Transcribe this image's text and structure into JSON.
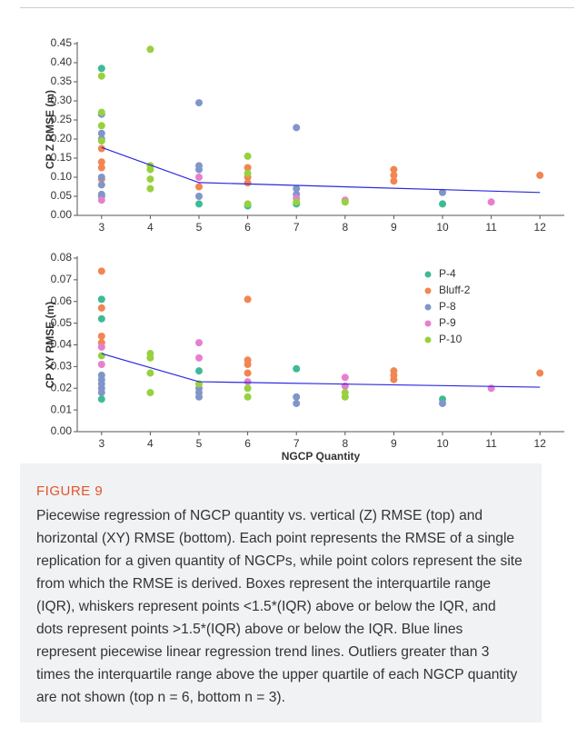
{
  "chart_data": [
    {
      "type": "scatter",
      "y_label": "CP Z RMSE (m)",
      "grid": false,
      "xlim": [
        2.5,
        12.5
      ],
      "xticks": [
        3,
        4,
        5,
        6,
        7,
        8,
        9,
        10,
        11,
        12
      ],
      "ylim": [
        0,
        0.45
      ],
      "yticks": [
        {
          "value": 0,
          "label": "0.00"
        },
        {
          "value": 0.05,
          "label": "0.05"
        },
        {
          "value": 0.1,
          "label": "0.10"
        },
        {
          "value": 0.15,
          "label": "0.15"
        },
        {
          "value": 0.2,
          "label": "0.20"
        },
        {
          "value": 0.25,
          "label": "0.25"
        },
        {
          "value": 0.3,
          "label": "0.30"
        },
        {
          "value": 0.35,
          "label": "0.35"
        },
        {
          "value": 0.4,
          "label": "0.40"
        },
        {
          "value": 0.45,
          "label": "0.45"
        }
      ],
      "series": [
        {
          "color": "#3dbb96",
          "x": [
            3,
            3,
            5,
            6,
            7,
            10
          ],
          "values": [
            0.385,
            0.05,
            0.03,
            0.025,
            0.03,
            0.03
          ]
        },
        {
          "color": "#f28552",
          "x": [
            3,
            3,
            3,
            3,
            5,
            6,
            6,
            6,
            9,
            9,
            9,
            12
          ],
          "values": [
            0.175,
            0.14,
            0.125,
            0.095,
            0.075,
            0.125,
            0.1,
            0.085,
            0.12,
            0.105,
            0.09,
            0.105
          ]
        },
        {
          "color": "#8096ca",
          "x": [
            3,
            3,
            3,
            3,
            3,
            3,
            5,
            5,
            5,
            5,
            7,
            7,
            7,
            10
          ],
          "values": [
            0.265,
            0.215,
            0.2,
            0.1,
            0.08,
            0.055,
            0.295,
            0.13,
            0.12,
            0.05,
            0.23,
            0.07,
            0.055,
            0.06
          ]
        },
        {
          "color": "#e87fce",
          "x": [
            3,
            5,
            7,
            8,
            11
          ],
          "values": [
            0.04,
            0.1,
            0.045,
            0.04,
            0.035
          ]
        },
        {
          "color": "#97d13f",
          "x": [
            3,
            3,
            3,
            3,
            4,
            4,
            4,
            4,
            4,
            6,
            6,
            6,
            7,
            8
          ],
          "values": [
            0.365,
            0.27,
            0.235,
            0.195,
            0.435,
            0.13,
            0.12,
            0.095,
            0.07,
            0.155,
            0.11,
            0.03,
            0.035,
            0.035
          ]
        }
      ],
      "trend": {
        "color": "#2929e0",
        "x": [
          3,
          5,
          12
        ],
        "values": [
          0.178,
          0.086,
          0.06
        ]
      }
    },
    {
      "type": "scatter",
      "y_label": "CP XY RMSE (m)",
      "x_label": "NGCP Quantity",
      "grid": false,
      "legend": "upper right",
      "xlim": [
        2.5,
        12.5
      ],
      "xticks": [
        3,
        4,
        5,
        6,
        7,
        8,
        9,
        10,
        11,
        12
      ],
      "ylim": [
        0,
        0.08
      ],
      "yticks": [
        {
          "value": 0,
          "label": "0.00"
        },
        {
          "value": 0.01,
          "label": "0.01"
        },
        {
          "value": 0.02,
          "label": "0.02"
        },
        {
          "value": 0.03,
          "label": "0.03"
        },
        {
          "value": 0.04,
          "label": "0.04"
        },
        {
          "value": 0.05,
          "label": "0.05"
        },
        {
          "value": 0.06,
          "label": "0.06"
        },
        {
          "value": 0.07,
          "label": "0.07"
        },
        {
          "value": 0.08,
          "label": "0.08"
        }
      ],
      "series": [
        {
          "name": "P-4",
          "color": "#3dbb96",
          "x": [
            3,
            3,
            3,
            5,
            7,
            10
          ],
          "values": [
            0.061,
            0.052,
            0.015,
            0.028,
            0.029,
            0.015
          ]
        },
        {
          "name": "Bluff-2",
          "color": "#f28552",
          "x": [
            3,
            3,
            3,
            3,
            6,
            6,
            6,
            6,
            9,
            9,
            9,
            12
          ],
          "values": [
            0.074,
            0.057,
            0.044,
            0.041,
            0.061,
            0.033,
            0.031,
            0.027,
            0.028,
            0.026,
            0.024,
            0.027
          ]
        },
        {
          "name": "P-8",
          "color": "#8096ca",
          "x": [
            3,
            3,
            3,
            3,
            3,
            5,
            5,
            5,
            7,
            7,
            10
          ],
          "values": [
            0.026,
            0.024,
            0.022,
            0.02,
            0.018,
            0.02,
            0.018,
            0.016,
            0.016,
            0.013,
            0.013
          ]
        },
        {
          "name": "P-9",
          "color": "#e87fce",
          "x": [
            3,
            3,
            5,
            5,
            6,
            8,
            8,
            11
          ],
          "values": [
            0.039,
            0.031,
            0.041,
            0.034,
            0.023,
            0.025,
            0.021,
            0.02
          ]
        },
        {
          "name": "P-10",
          "color": "#97d13f",
          "x": [
            3,
            4,
            4,
            4,
            4,
            5,
            6,
            6,
            8,
            8
          ],
          "values": [
            0.035,
            0.036,
            0.034,
            0.027,
            0.018,
            0.022,
            0.02,
            0.016,
            0.018,
            0.016
          ]
        }
      ],
      "trend": {
        "color": "#2929e0",
        "x": [
          3,
          5,
          12
        ],
        "values": [
          0.036,
          0.023,
          0.0205
        ]
      }
    }
  ],
  "figure": {
    "label": "FIGURE 9",
    "caption": "Piecewise regression of NGCP quantity vs. vertical (Z) RMSE (top) and horizontal (XY) RMSE (bottom). Each point represents the RMSE of a single replication for a given quantity of NGCPs, while point colors represent the site from which the RMSE is derived. Boxes represent the interquartile range (IQR), whiskers represent points <1.5*(IQR) above or below the IQR, and dots represent points >1.5*(IQR) above or below the IQR. Blue lines represent piecewise linear regression trend lines. Outliers greater than 3 times the interquartile range above the upper quartile of each NGCP quantity are not shown (top n = 6, bottom n = 3)."
  }
}
